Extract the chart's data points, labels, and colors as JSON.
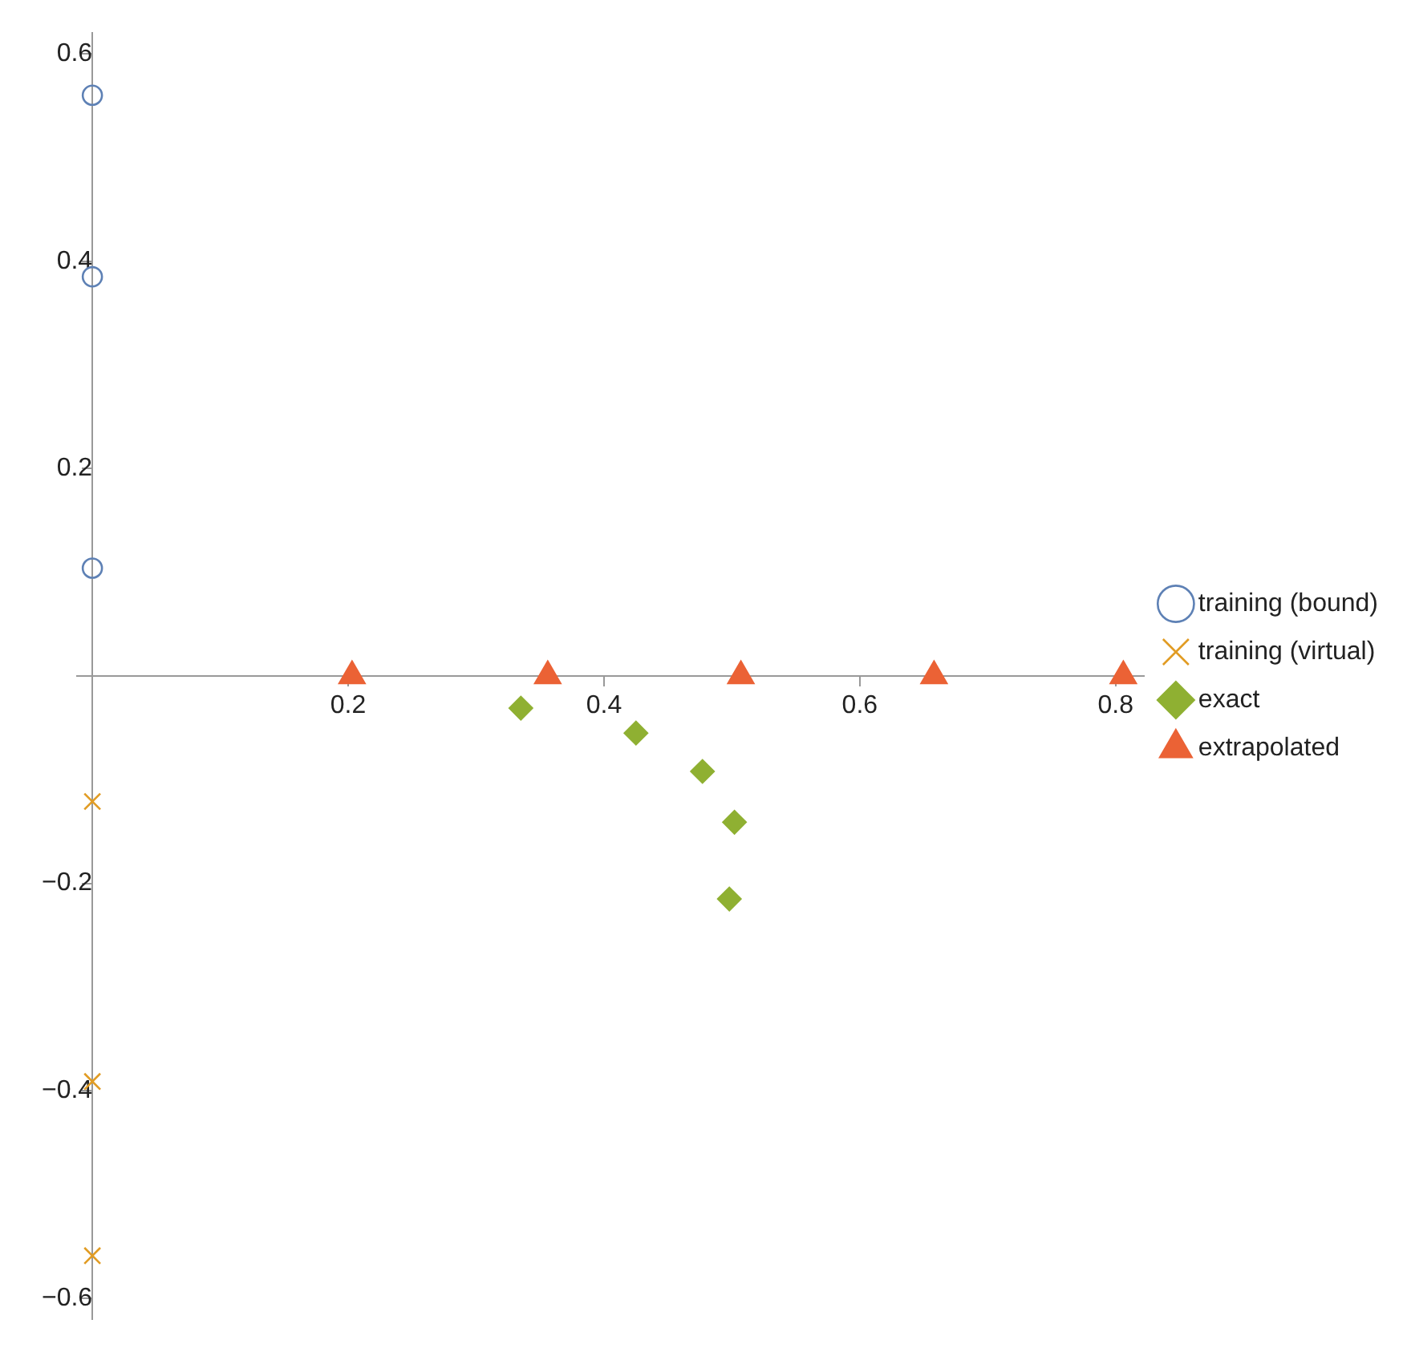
{
  "chart_data": {
    "type": "scatter",
    "series": [
      {
        "name": "training (bound)",
        "color": "#5e81b5",
        "marker": "circle",
        "x": [
          0,
          0,
          0
        ],
        "values": [
          0.56,
          0.385,
          0.104
        ]
      },
      {
        "name": "training (virtual)",
        "color": "#e19c24",
        "marker": "cross",
        "x": [
          0,
          0,
          0
        ],
        "values": [
          -0.121,
          -0.391,
          -0.559
        ]
      },
      {
        "name": "exact",
        "color": "#8fb032",
        "marker": "diamond",
        "x": [
          0.335,
          0.425,
          0.477,
          0.502,
          0.498
        ],
        "values": [
          -0.031,
          -0.055,
          -0.092,
          -0.141,
          -0.215
        ]
      },
      {
        "name": "extrapolated",
        "color": "#eb6235",
        "marker": "triangle",
        "x": [
          0.203,
          0.356,
          0.507,
          0.658,
          0.806
        ],
        "values": [
          0,
          0,
          0,
          0,
          0
        ]
      }
    ],
    "xlim": [
      -0.012,
      0.822
    ],
    "xticks": [
      0.2,
      0.4,
      0.6,
      0.8
    ],
    "ylim": [
      -0.62,
      0.62
    ],
    "yticks": [
      -0.6,
      -0.4,
      -0.2,
      0.2,
      0.4,
      0.6
    ],
    "grid": false,
    "legend": "right"
  }
}
